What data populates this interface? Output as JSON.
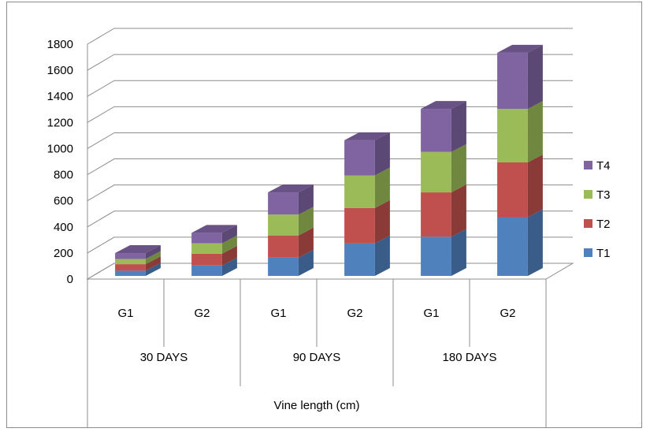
{
  "chart_data": {
    "type": "bar",
    "stacked": true,
    "three_d": true,
    "title": "",
    "xlabel": "Vine length (cm)",
    "ylabel": "",
    "ylim": [
      0,
      1800
    ],
    "yticks": [
      "0",
      "200",
      "400",
      "600",
      "800",
      "1000",
      "1200",
      "1400",
      "1600",
      "1800"
    ],
    "groups": [
      {
        "label": "30 DAYS",
        "categories": [
          "G1",
          "G2"
        ]
      },
      {
        "label": "90 DAYS",
        "categories": [
          "G1",
          "G2"
        ]
      },
      {
        "label": "180 DAYS",
        "categories": [
          "G1",
          "G2"
        ]
      }
    ],
    "categories": [
      "G1",
      "G2",
      "G1",
      "G2",
      "G1",
      "G2"
    ],
    "series": [
      {
        "name": "T1",
        "color": "#4F81BD",
        "values": [
          40,
          80,
          140,
          250,
          300,
          450
        ]
      },
      {
        "name": "T2",
        "color": "#C0504D",
        "values": [
          50,
          90,
          170,
          270,
          340,
          420
        ]
      },
      {
        "name": "T3",
        "color": "#9BBB59",
        "values": [
          40,
          80,
          160,
          250,
          310,
          410
        ]
      },
      {
        "name": "T4",
        "color": "#8064A2",
        "values": [
          45,
          80,
          170,
          270,
          330,
          430
        ]
      }
    ],
    "legend_order": [
      "T4",
      "T3",
      "T2",
      "T1"
    ],
    "legend_position": "right",
    "grid": true
  }
}
